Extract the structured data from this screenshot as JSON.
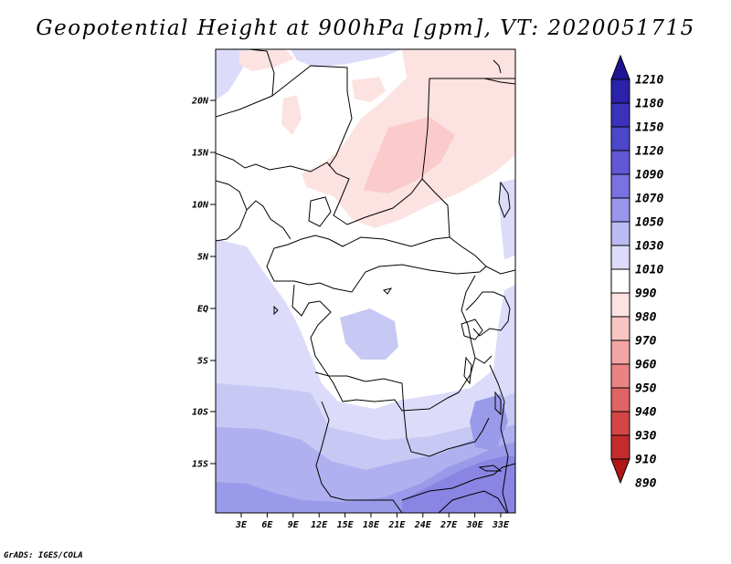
{
  "title": "Geopotential Height at 900hPa [gpm], VT: 2020051715",
  "credit": "GrADS: IGES/COLA",
  "map": {
    "lat_labels": [
      "20N",
      "15N",
      "10N",
      "5N",
      "EQ",
      "5S",
      "10S",
      "15S"
    ],
    "lon_labels": [
      "3E",
      "6E",
      "9E",
      "12E",
      "15E",
      "18E",
      "21E",
      "24E",
      "27E",
      "30E",
      "33E"
    ],
    "field_colors": {
      "pink_light": "#fde2e2",
      "pink_mid": "#fbcaca",
      "white": "#ffffff",
      "lav_1010": "#dcdcfa",
      "lav_1030": "#c8c8f4",
      "lav_1050": "#b0b0f0",
      "lav_1070": "#9a9aea",
      "lav_1090": "#8a84e2"
    }
  },
  "legend": {
    "levels": [
      {
        "label": "1210",
        "color": "#1e1496"
      },
      {
        "label": "1180",
        "color": "#2a22a8"
      },
      {
        "label": "1150",
        "color": "#3a32ba"
      },
      {
        "label": "1120",
        "color": "#4c46c8"
      },
      {
        "label": "1090",
        "color": "#6058d4"
      },
      {
        "label": "1070",
        "color": "#7a72e0"
      },
      {
        "label": "1050",
        "color": "#9a96ec"
      },
      {
        "label": "1030",
        "color": "#bcbaf4"
      },
      {
        "label": "1010",
        "color": "#dcdcfa"
      },
      {
        "label": "990",
        "color": "#ffffff"
      },
      {
        "label": "980",
        "color": "#fde2e2"
      },
      {
        "label": "970",
        "color": "#f8c4c4"
      },
      {
        "label": "960",
        "color": "#f2a4a4"
      },
      {
        "label": "950",
        "color": "#ea8484"
      },
      {
        "label": "940",
        "color": "#e06464"
      },
      {
        "label": "930",
        "color": "#d44646"
      },
      {
        "label": "910",
        "color": "#c42c2c"
      },
      {
        "label": "890",
        "color": "#b01818"
      }
    ]
  }
}
